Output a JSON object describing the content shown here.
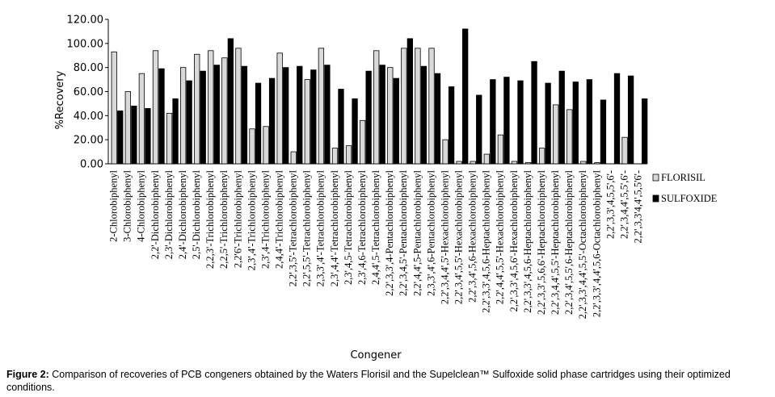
{
  "chart_data": {
    "type": "bar",
    "title": "",
    "xlabel": "Congener",
    "ylabel": "%Recovery",
    "ylim": [
      0,
      120
    ],
    "yticks": [
      "0.00",
      "20.00",
      "40.00",
      "60.00",
      "80.00",
      "100.00",
      "120.00"
    ],
    "legend_position": "right",
    "grid": false,
    "categories": [
      "2-Chlorobiphenyl",
      "3-Chlorobiphenyl",
      "4-Chlorobiphenyl",
      "2,2'-Dichlorobiphenyl",
      "2,3'-Dichlorobiphenyl",
      "2,4'-Dichlorobiphenyl",
      "2,5'-Dichlorobiphenyl",
      "2,2,3'-Trichlorobiphenyl",
      "2,2,5'-Trichlorobiphenyl",
      "2,2'6'-Trichlorobiphenyl",
      "2,3',4'-Trichlorobiphenyl",
      "2,3',4-Trichlorobiphenyl",
      "2,4,4'-Trichlorobiphenyl",
      "2,2',3,5'-Tetrachlorobiphenyl",
      "2,2',5,5'-Tetrachlorobiphenyl",
      "2,3,3',4'-Tetrachlorobiphenyl",
      "2,3',4,4'-Tetrachlorobiphenyl",
      "2,3',4,5-Tetrachlorobiphenyl",
      "2,3',4,6-Tetrachlorobiphenyl",
      "2,4,4',5-Tetrachlorobiphenyl",
      "2,2',3,3',4-Pentachlorobiphenyl",
      "2,2',3,4,5'-Pentachlorobiphenyl",
      "2,2',4,4',5-Pentachlorobiphenyl",
      "2,3,3',4',6-Pentachlorobiphenyl",
      "2,2',3,4,4',5'-Hexachlorobiphenyl",
      "2,2',3,4',5,5'-Hexachlorobiphenyl",
      "2,2',3,4',5,6-Hexachlorobiphenyl",
      "2,2',3,3',4,5,6-Heptachlorobiphenyl",
      "2,2',4,4',5,5'-Hexachlorobiphenyl",
      "2,2',3,3',4,5,6'-Hexachlorobiphenyl",
      "2,2',3,3',4,5,6-Heptachlorobiphenyl",
      "2,2',3,3',5,6,6'-Heptachlorobiphenyl",
      "2,2',3,4,4',5,5'-Heptachlorobiphenyl",
      "2,2',3,4',5,5',6-Heptachlorobiphenyl",
      "2,2',3,3',4,4',5,5'-Octachlorobiphenyl",
      "2,2',3,3',4,4',5,6-Octachlorobiphenyl",
      "2,2',3,3',4,5,5',6'-",
      "2,2',3,4,4',5,5',6'-",
      "2,2',3,3'4,4',5,5'6'-"
    ],
    "series": [
      {
        "name": "FLORISIL",
        "color": "#d9d9d9",
        "values": [
          93,
          60,
          75,
          94,
          42,
          80,
          91,
          94,
          88,
          96,
          29,
          31,
          92,
          10,
          70,
          96,
          13,
          15,
          36,
          94,
          80,
          96,
          96,
          96,
          20,
          2,
          2,
          8,
          24,
          2,
          1,
          13,
          49,
          45,
          2,
          1,
          0,
          22,
          0
        ]
      },
      {
        "name": "SULFOXIDE",
        "color": "#000000",
        "values": [
          44,
          48,
          46,
          79,
          54,
          69,
          77,
          82,
          104,
          81,
          67,
          71,
          80,
          81,
          78,
          82,
          62,
          54,
          77,
          82,
          71,
          104,
          81,
          75,
          64,
          112,
          57,
          70,
          72,
          69,
          85,
          67,
          77,
          68,
          70,
          53,
          75,
          73,
          54
        ]
      }
    ]
  },
  "caption": {
    "label": "Figure 2:",
    "text": "Comparison of recoveries of PCB congeners obtained by the Waters Florisil and the Supelclean™ Sulfoxide solid phase cartridges using their optimized conditions."
  }
}
